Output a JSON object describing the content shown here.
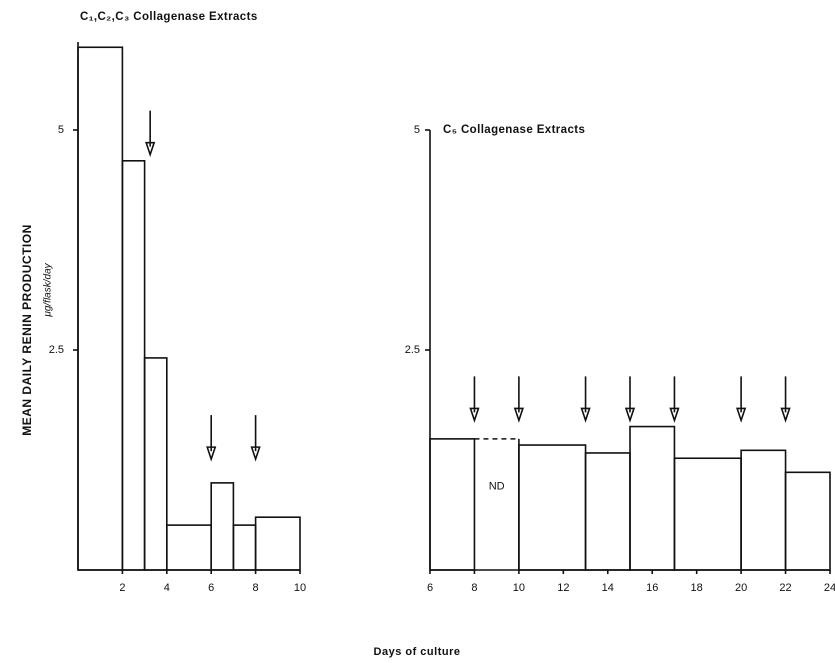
{
  "figure": {
    "ylabel": "MEAN DAILY RENIN PRODUCTION",
    "yunit": "μg/flask/day",
    "xlabel": "Days of culture"
  },
  "chart_data": [
    {
      "type": "histogram",
      "title": "C₁,C₂,C₃  Collagenase Extracts",
      "bins": [
        0,
        2,
        3,
        4,
        6,
        7,
        8,
        10
      ],
      "values": [
        5.94,
        4.65,
        2.41,
        0.51,
        0.99,
        0.51,
        0.6
      ],
      "xlim": [
        0,
        10
      ],
      "xticks": [
        2,
        4,
        6,
        8,
        10
      ],
      "ylim": [
        0,
        6
      ],
      "yticks": [
        5,
        2.5
      ],
      "arrows": [
        {
          "x": 3.25,
          "y": 4.72
        },
        {
          "x": 6,
          "y": 1.26
        },
        {
          "x": 8,
          "y": 1.26
        }
      ]
    },
    {
      "type": "histogram",
      "title": "C₅  Collagenase Extracts",
      "bins": [
        6,
        8,
        10,
        13,
        15,
        17,
        20,
        22,
        24
      ],
      "values": [
        1.49,
        null,
        1.42,
        1.33,
        1.63,
        1.27,
        1.36,
        1.11
      ],
      "xlim": [
        6,
        24
      ],
      "xticks": [
        6,
        8,
        10,
        12,
        14,
        16,
        18,
        20,
        22,
        24
      ],
      "ylim": [
        0,
        5
      ],
      "yticks": [
        5,
        2.5
      ],
      "arrows": [
        {
          "x": 8,
          "y": 1.7
        },
        {
          "x": 10,
          "y": 1.7
        },
        {
          "x": 13,
          "y": 1.7
        },
        {
          "x": 15,
          "y": 1.7
        },
        {
          "x": 17,
          "y": 1.7
        },
        {
          "x": 20,
          "y": 1.7
        },
        {
          "x": 22,
          "y": 1.7
        }
      ],
      "annotation": {
        "text": "ND",
        "x": 9,
        "y": 0.95
      }
    }
  ]
}
